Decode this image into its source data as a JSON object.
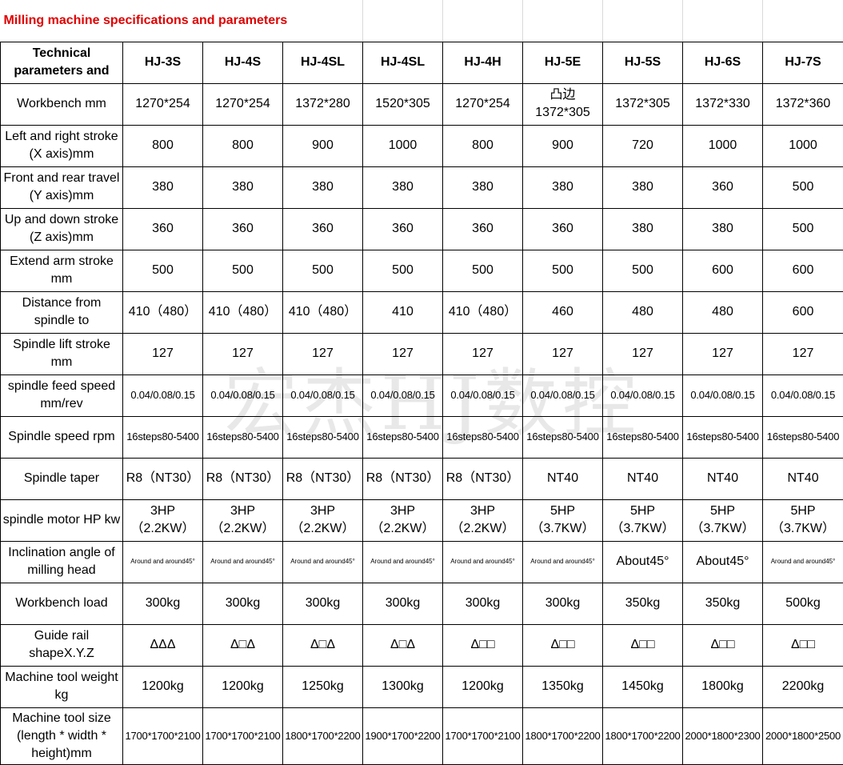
{
  "title": "Milling machine specifications and parameters",
  "watermark": "宏杰HJ数控",
  "table": {
    "header": [
      "Technical parameters and",
      "HJ-3S",
      "HJ-4S",
      "HJ-4SL",
      "HJ-4SL",
      "HJ-4H",
      "HJ-5E",
      "HJ-5S",
      "HJ-6S",
      "HJ-7S"
    ],
    "rows": [
      [
        "Workbench mm",
        "1270*254",
        "1270*254",
        "1372*280",
        "1520*305",
        "1270*254",
        "凸边1372*305",
        "1372*305",
        "1372*330",
        "1372*360"
      ],
      [
        "Left and right stroke (X axis)mm",
        "800",
        "800",
        "900",
        "1000",
        "800",
        "900",
        "720",
        "1000",
        "1000"
      ],
      [
        "Front and rear travel (Y axis)mm",
        "380",
        "380",
        "380",
        "380",
        "380",
        "380",
        "380",
        "360",
        "500"
      ],
      [
        "Up and down stroke (Z axis)mm",
        "360",
        "360",
        "360",
        "360",
        "360",
        "360",
        "380",
        "380",
        "500"
      ],
      [
        "Extend arm stroke mm",
        "500",
        "500",
        "500",
        "500",
        "500",
        "500",
        "500",
        "600",
        "600"
      ],
      [
        "Distance from spindle to",
        "410（480）",
        "410（480）",
        "410（480）",
        "410",
        "410（480）",
        "460",
        "480",
        "480",
        "600"
      ],
      [
        "Spindle lift stroke mm",
        "127",
        "127",
        "127",
        "127",
        "127",
        "127",
        "127",
        "127",
        "127"
      ],
      [
        "spindle feed speed mm/rev",
        "0.04/0.08/0.15",
        "0.04/0.08/0.15",
        "0.04/0.08/0.15",
        "0.04/0.08/0.15",
        "0.04/0.08/0.15",
        "0.04/0.08/0.15",
        "0.04/0.08/0.15",
        "0.04/0.08/0.15",
        "0.04/0.08/0.15"
      ],
      [
        "Spindle speed rpm",
        "16steps80-5400",
        "16steps80-5400",
        "16steps80-5400",
        "16steps80-5400",
        "16steps80-5400",
        "16steps80-5400",
        "16steps80-5400",
        "16steps80-5400",
        "16steps80-5400"
      ],
      [
        "Spindle taper",
        "R8（NT30）",
        "R8（NT30）",
        "R8（NT30）",
        "R8（NT30）",
        "R8（NT30）",
        "NT40",
        "NT40",
        "NT40",
        "NT40"
      ],
      [
        "spindle motor HP kw",
        "3HP（2.2KW）",
        "3HP（2.2KW）",
        "3HP（2.2KW）",
        "3HP（2.2KW）",
        "3HP（2.2KW）",
        "5HP（3.7KW）",
        "5HP（3.7KW）",
        "5HP（3.7KW）",
        "5HP（3.7KW）"
      ],
      [
        "Inclination angle of milling head",
        "Around and around45°",
        "Around and around45°",
        "Around and around45°",
        "Around and around45°",
        "Around and around45°",
        "Around and around45°",
        "About45°",
        "About45°",
        "Around and around45°"
      ],
      [
        "Workbench load",
        "300kg",
        "300kg",
        "300kg",
        "300kg",
        "300kg",
        "300kg",
        "350kg",
        "350kg",
        "500kg"
      ],
      [
        "Guide rail shapeX.Y.Z",
        "ΔΔΔ",
        "Δ□Δ",
        "Δ□Δ",
        "Δ□Δ",
        "Δ□□",
        "Δ□□",
        "Δ□□",
        "Δ□□",
        "Δ□□"
      ],
      [
        "Machine tool weight kg",
        "1200kg",
        "1200kg",
        "1250kg",
        "1300kg",
        "1200kg",
        "1350kg",
        "1450kg",
        "1800kg",
        "2200kg"
      ],
      [
        "Machine tool size (length * width * height)mm",
        "1700*1700*2100",
        "1700*1700*2100",
        "1800*1700*2200",
        "1900*1700*2200",
        "1700*1700*2100",
        "1800*1700*2200",
        "1800*1700*2200",
        "2000*1800*2300",
        "2000*1800*2500"
      ]
    ]
  }
}
